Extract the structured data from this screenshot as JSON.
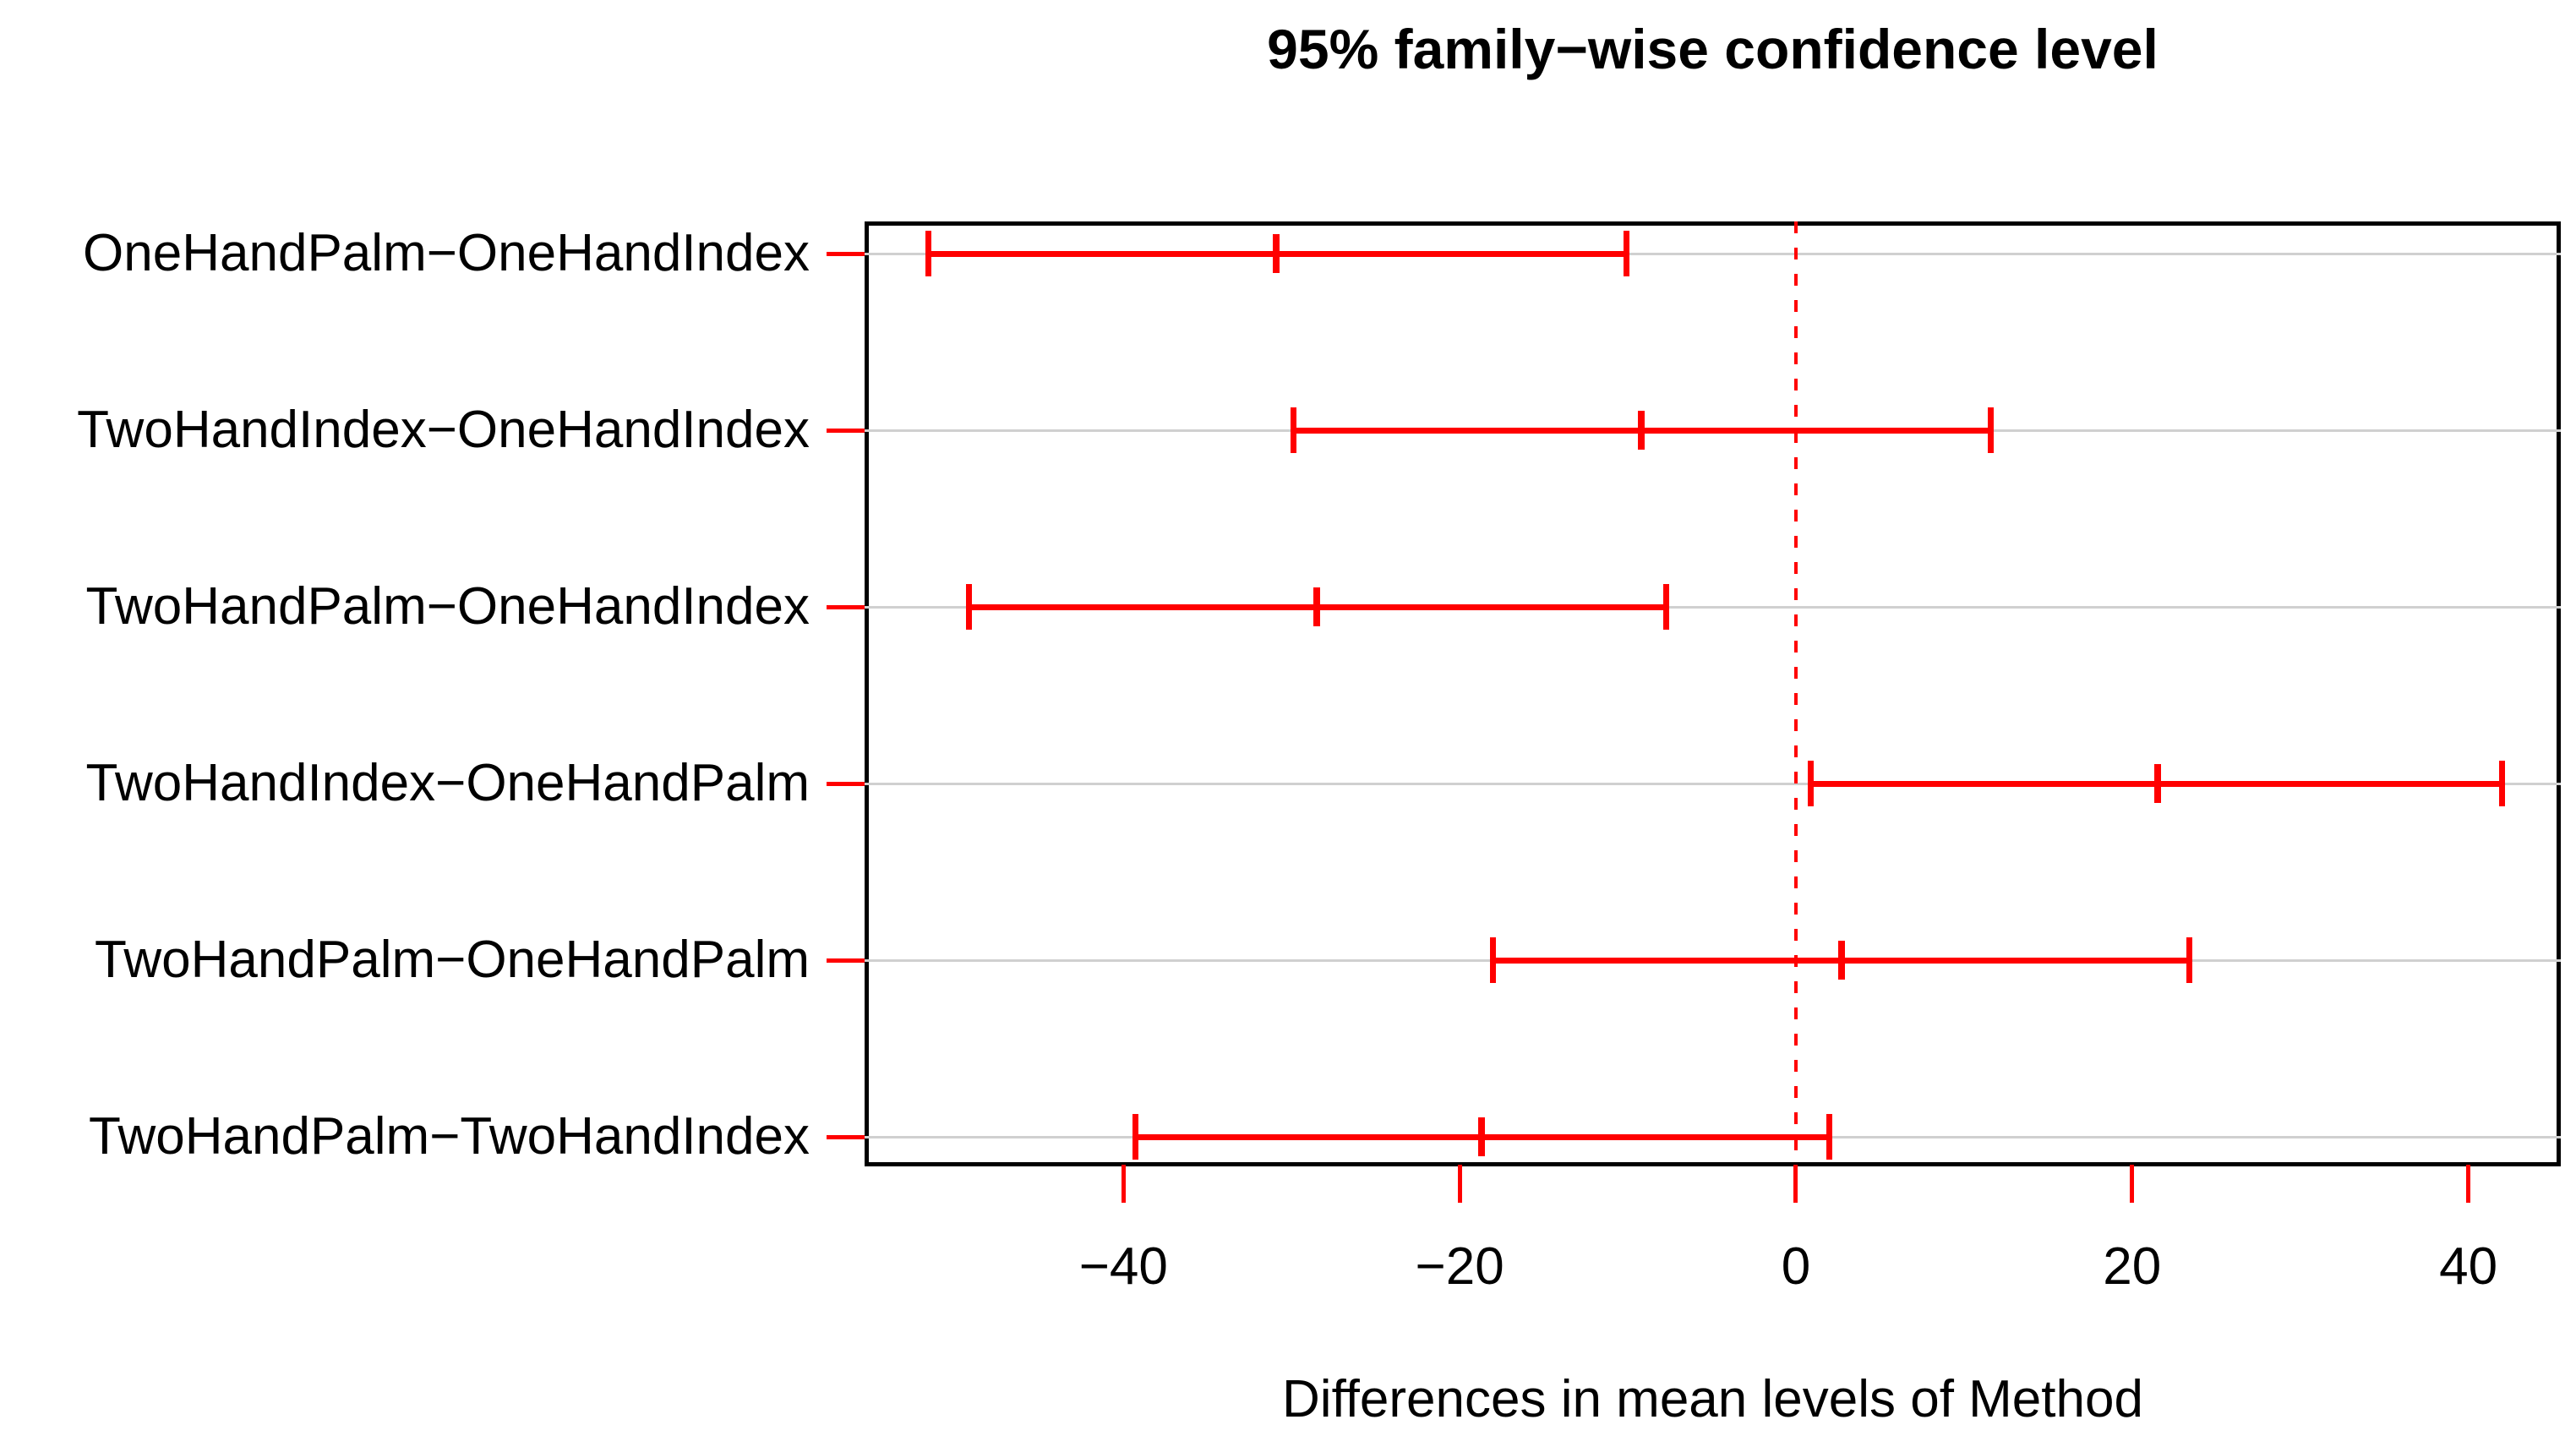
{
  "chart_data": {
    "type": "interval",
    "subtype": "tukey-hsd-confidence-intervals",
    "title": "95% family−wise confidence level",
    "xlabel": "Differences in mean levels of Method",
    "ylabel": "",
    "comparisons": [
      {
        "label": "OneHandPalm−OneHandIndex",
        "diff": -30.9,
        "lwr": -51.6,
        "upr": -10.1
      },
      {
        "label": "TwoHandIndex−OneHandIndex",
        "diff": -9.2,
        "lwr": -29.9,
        "upr": 11.6
      },
      {
        "label": "TwoHandPalm−OneHandIndex",
        "diff": -28.5,
        "lwr": -49.2,
        "upr": -7.7
      },
      {
        "label": "TwoHandIndex−OneHandPalm",
        "diff": 21.5,
        "lwr": 0.9,
        "upr": 42.0
      },
      {
        "label": "TwoHandPalm−OneHandPalm",
        "diff": 2.7,
        "lwr": -18.0,
        "upr": 23.4
      },
      {
        "label": "TwoHandPalm−TwoHandIndex",
        "diff": -18.7,
        "lwr": -39.3,
        "upr": 2.0
      }
    ],
    "x_ticks": [
      {
        "value": -40,
        "label": "−40"
      },
      {
        "value": -20,
        "label": "−20"
      },
      {
        "value": 0,
        "label": "0"
      },
      {
        "value": 20,
        "label": "20"
      },
      {
        "value": 40,
        "label": "40"
      }
    ],
    "xlim": [
      -55.4,
      45.5
    ],
    "reference_line_x": 0,
    "grid": true,
    "legend": "none",
    "colors": {
      "interval": "#FF0000",
      "reference_line": "#FF0000",
      "axis_ticks": "#FF0000",
      "gridline": "#D0D0D0",
      "box": "#000000",
      "text": "#000000",
      "background": "#FFFFFF"
    }
  }
}
